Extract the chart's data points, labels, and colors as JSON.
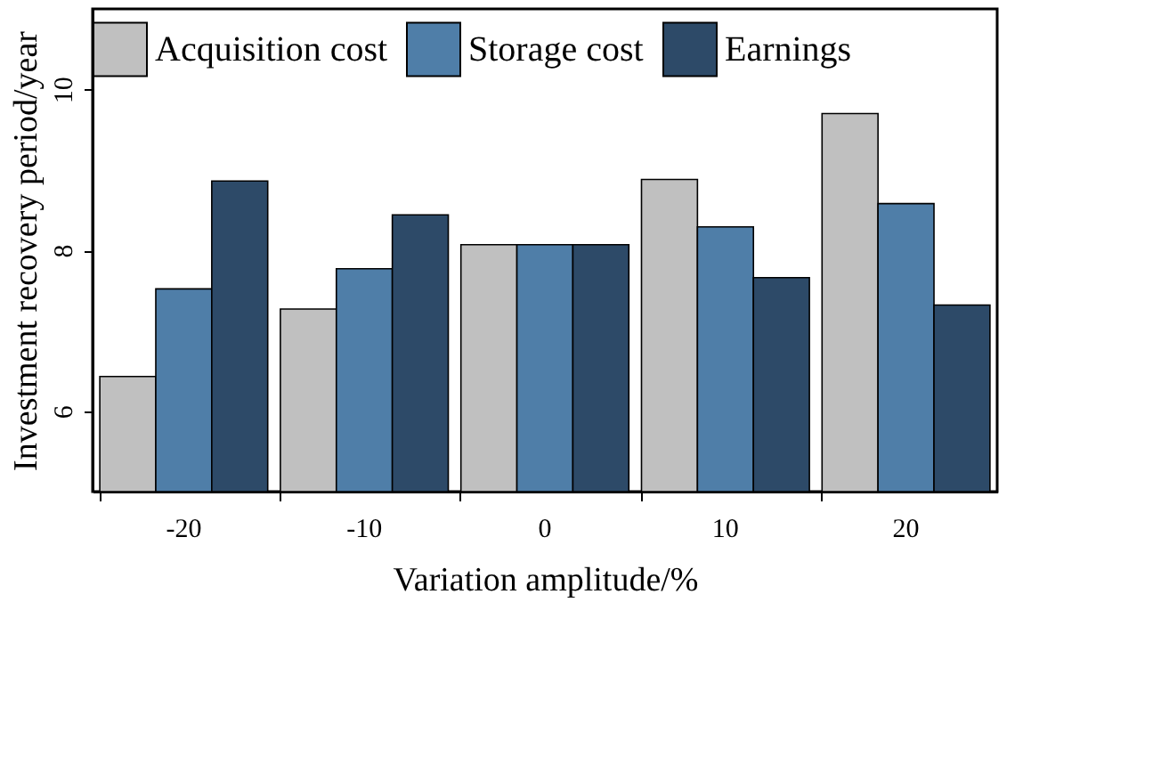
{
  "chart_data": {
    "type": "bar",
    "xlabel": "Variation amplitude/%",
    "ylabel": "Investment recovery period/year",
    "categories": [
      "-20",
      "-10",
      "0",
      "10",
      "20"
    ],
    "series": [
      {
        "name": "Acquisition cost",
        "color": "#c0c0c0",
        "values": [
          6.43,
          7.27,
          8.07,
          8.88,
          9.7
        ]
      },
      {
        "name": "Storage cost",
        "color": "#4f7ea8",
        "values": [
          7.52,
          7.77,
          8.07,
          8.29,
          8.58
        ]
      },
      {
        "name": "Earnings",
        "color": "#2d4a68",
        "values": [
          8.86,
          8.44,
          8.07,
          7.66,
          7.32
        ]
      }
    ],
    "ylim": [
      5,
      11
    ],
    "yticks": [
      6,
      8,
      10
    ],
    "grid": false,
    "legend": "top"
  }
}
